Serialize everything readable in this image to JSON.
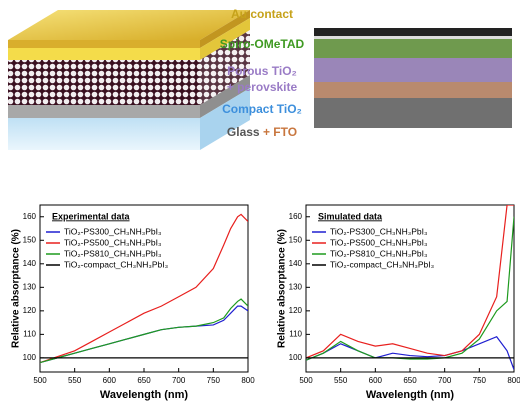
{
  "schematic": {
    "labels": {
      "au": "Au contact",
      "spiro": "Spiro-OMeTAD",
      "porous": "Porous TiO₂",
      "perovskite": "+ perovskite",
      "compact": "Compact TiO₂",
      "glass": "Glass",
      "fto": "+ FTO"
    }
  },
  "chart_data": [
    {
      "type": "line",
      "title": "Experimental data",
      "xlabel": "Wavelength (nm)",
      "ylabel": "Relative absorptance (%)",
      "x": [
        500,
        525,
        550,
        575,
        600,
        625,
        650,
        675,
        700,
        725,
        750,
        765,
        775,
        785,
        790,
        800
      ],
      "series": [
        {
          "name": "TiO₂-PS300_CH₃NH₃PbI₃",
          "color": "#1f1fd0",
          "values": [
            98,
            100,
            102,
            104,
            106,
            108,
            110,
            112,
            113,
            113.5,
            114,
            116,
            119,
            122,
            122,
            120
          ]
        },
        {
          "name": "TiO₂-PS500_CH₃NH₃PbI₃",
          "color": "#e8201e",
          "values": [
            98,
            100.5,
            103,
            107,
            111,
            115,
            119,
            122,
            126,
            130,
            138,
            148,
            155,
            160,
            161,
            158
          ]
        },
        {
          "name": "TiO₂-PS810_CH₃NH₃PbI₃",
          "color": "#1e9a1e",
          "values": [
            98,
            100,
            102,
            104,
            106,
            108,
            110,
            112,
            113,
            113.5,
            115,
            117,
            121,
            124,
            125,
            122
          ]
        },
        {
          "name": "TiO₂-compact_CH₃NH₃PbI₃",
          "color": "#000000",
          "values": [
            100,
            100,
            100,
            100,
            100,
            100,
            100,
            100,
            100,
            100,
            100,
            100,
            100,
            100,
            100,
            100
          ]
        }
      ],
      "xlim": [
        500,
        800
      ],
      "ylim": [
        94,
        165
      ],
      "xticks": [
        500,
        550,
        600,
        650,
        700,
        750,
        800
      ],
      "yticks": [
        100,
        110,
        120,
        130,
        140,
        150,
        160
      ],
      "legend": "upper left",
      "grid": false
    },
    {
      "type": "line",
      "title": "Simulated data",
      "xlabel": "Wavelength (nm)",
      "ylabel": "Relative absorptance (%)",
      "x": [
        500,
        525,
        550,
        575,
        600,
        625,
        650,
        675,
        700,
        725,
        750,
        775,
        790,
        800
      ],
      "series": [
        {
          "name": "TiO₂-PS300_CH₃NH₃PbI₃",
          "color": "#1f1fd0",
          "values": [
            99,
            102,
            106,
            103,
            100,
            102,
            101,
            100.5,
            101,
            103,
            106,
            109,
            103,
            95
          ]
        },
        {
          "name": "TiO₂-PS500_CH₃NH₃PbI₃",
          "color": "#e8201e",
          "values": [
            100,
            103,
            110,
            107,
            105,
            106,
            104,
            102,
            101,
            103,
            110,
            126,
            165,
            165
          ]
        },
        {
          "name": "TiO₂-PS810_CH₃NH₃PbI₃",
          "color": "#1e9a1e",
          "values": [
            99,
            102,
            107,
            103,
            100,
            100,
            99.5,
            99.5,
            100,
            102,
            108,
            120,
            124,
            160
          ]
        },
        {
          "name": "TiO₂-compact_CH₃NH₃PbI₃",
          "color": "#000000",
          "values": [
            100,
            100,
            100,
            100,
            100,
            100,
            100,
            100,
            100,
            100,
            100,
            100,
            100,
            100
          ]
        }
      ],
      "xlim": [
        500,
        800
      ],
      "ylim": [
        94,
        165
      ],
      "xticks": [
        500,
        550,
        600,
        650,
        700,
        750,
        800
      ],
      "yticks": [
        100,
        110,
        120,
        130,
        140,
        150,
        160
      ],
      "legend": "upper left",
      "grid": false
    }
  ]
}
